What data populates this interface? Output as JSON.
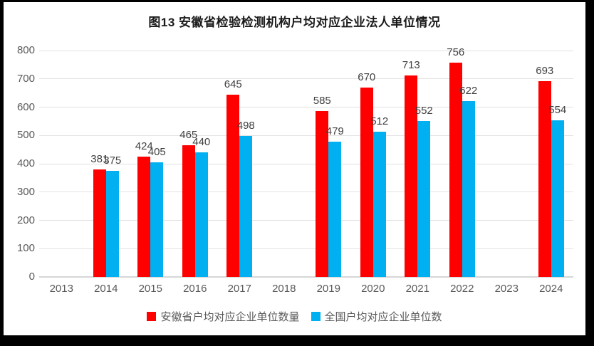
{
  "window": {
    "background": "#ffffff",
    "frame_border_color": "#000000"
  },
  "chart_data": {
    "type": "bar",
    "title": "图13 安徽省检验检测机构户均对应企业法人单位情况",
    "categories": [
      "2013",
      "2014",
      "2015",
      "2016",
      "2017",
      "2018",
      "2019",
      "2020",
      "2021",
      "2022",
      "2023",
      "2024"
    ],
    "series": [
      {
        "name": "安徽省户均对应企业单位数量",
        "color": "#ff0000",
        "values": [
          null,
          381,
          424,
          465,
          645,
          null,
          585,
          670,
          713,
          756,
          null,
          693
        ]
      },
      {
        "name": "全国户均对应企业单位数",
        "color": "#00b0f0",
        "values": [
          null,
          375,
          405,
          440,
          498,
          null,
          479,
          512,
          552,
          622,
          null,
          554
        ]
      }
    ],
    "xlabel": "",
    "ylabel": "",
    "ylim": [
      0,
      800
    ],
    "ytick_step": 100,
    "grid": true,
    "legend_position": "bottom",
    "data_labels_shown": true,
    "style": {
      "grid_color": "#e2e2e2",
      "axis_line_color": "#d6d6d6",
      "tick_label_color": "#595959",
      "data_label_color": "#404040",
      "title_color": "#1a1a1a"
    }
  }
}
